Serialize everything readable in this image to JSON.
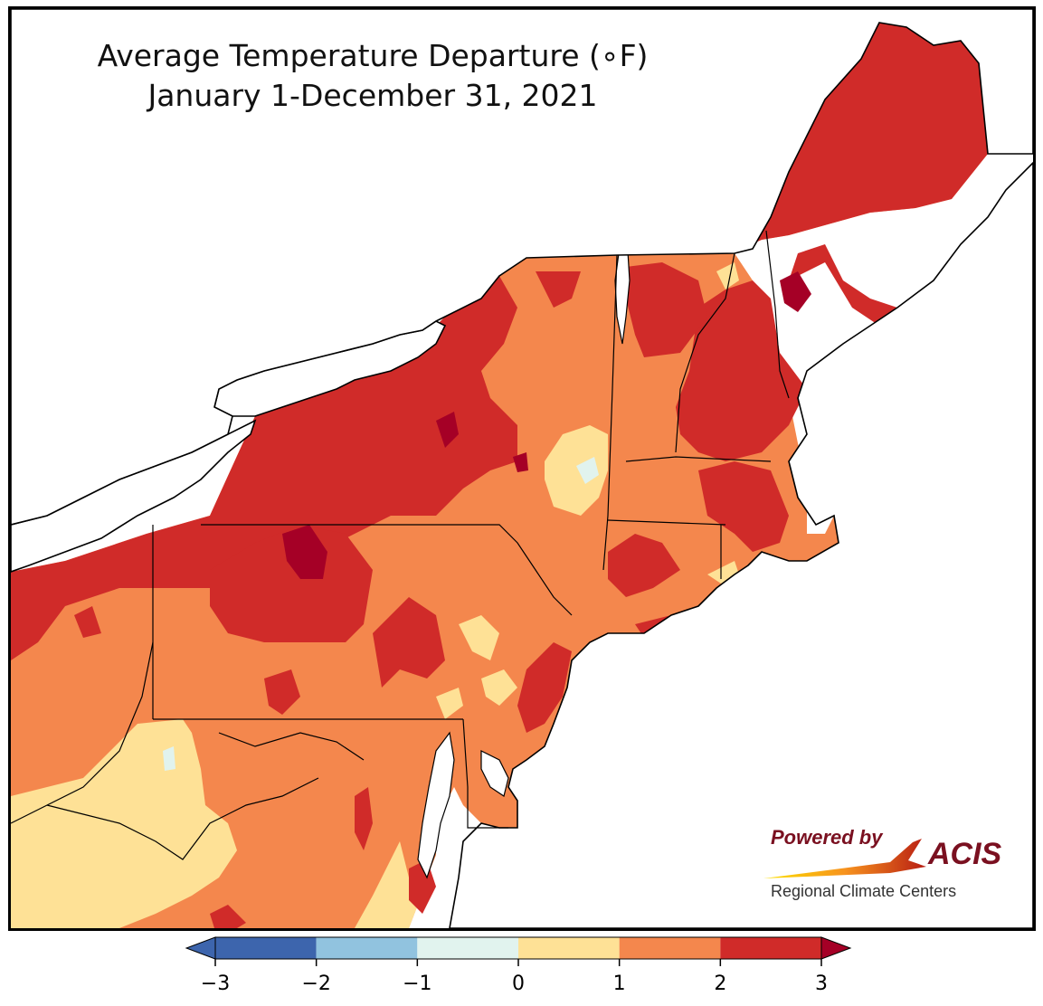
{
  "title": {
    "line1": "Average Temperature Departure (∘F)",
    "line2": "January 1-December 31, 2021"
  },
  "logo": {
    "powered_by": "Powered by",
    "brand": "ACIS",
    "org": "Regional Climate Centers"
  },
  "legend": {
    "ticks": [
      "−3",
      "−2",
      "−1",
      "0",
      "1",
      "2",
      "3"
    ],
    "bins": [
      {
        "range": [
          -3,
          -2
        ],
        "color": "#3d65ad"
      },
      {
        "range": [
          -2,
          -1
        ],
        "color": "#91c3df"
      },
      {
        "range": [
          -1,
          0
        ],
        "color": "#e1f3ee"
      },
      {
        "range": [
          0,
          1
        ],
        "color": "#fee196"
      },
      {
        "range": [
          1,
          2
        ],
        "color": "#f4874d"
      },
      {
        "range": [
          2,
          3
        ],
        "color": "#d02b29"
      }
    ],
    "under_color": "#3d65ad",
    "over_color": "#a50026"
  },
  "colors": {
    "band_0_1": "#fee196",
    "band_1_2": "#f4874d",
    "band_2_3": "#d02b29",
    "band_3_plus": "#a50026",
    "band_neg1_0": "#e1f3ee",
    "water": "#ffffff",
    "logo_red": "#7a1020"
  }
}
